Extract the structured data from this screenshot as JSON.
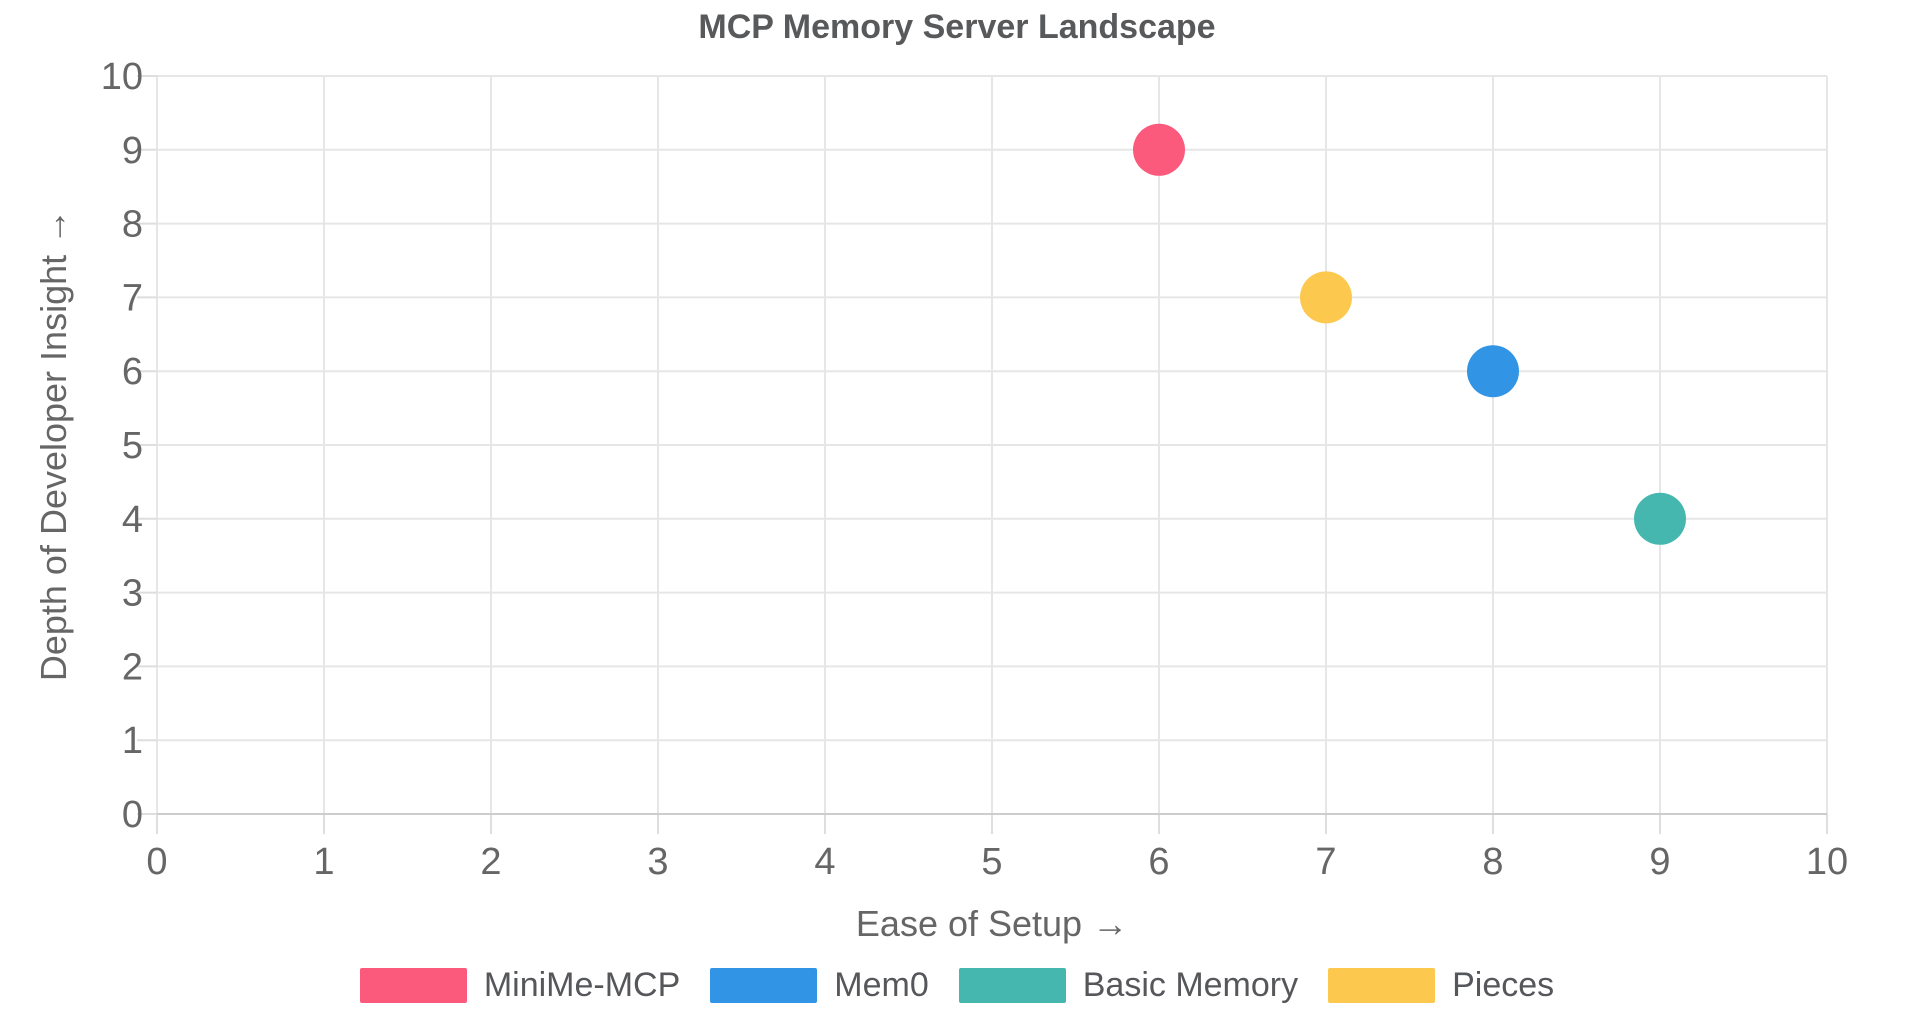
{
  "chart_data": {
    "type": "scatter",
    "title": "MCP Memory Server Landscape",
    "xlabel": "Ease of Setup →",
    "ylabel": "Depth of Developer Insight →",
    "xlim": [
      0,
      10
    ],
    "ylim": [
      0,
      10
    ],
    "x_ticks": [
      0,
      1,
      2,
      3,
      4,
      5,
      6,
      7,
      8,
      9,
      10
    ],
    "y_ticks": [
      0,
      1,
      2,
      3,
      4,
      5,
      6,
      7,
      8,
      9,
      10
    ],
    "grid": true,
    "legend_position": "bottom",
    "series": [
      {
        "name": "MiniMe-MCP",
        "color": "#fb5a7d",
        "points": [
          {
            "x": 6,
            "y": 9,
            "r": 26
          }
        ]
      },
      {
        "name": "Mem0",
        "color": "#3294e4",
        "points": [
          {
            "x": 8,
            "y": 6,
            "r": 26
          }
        ]
      },
      {
        "name": "Basic Memory",
        "color": "#45b7ae",
        "points": [
          {
            "x": 9,
            "y": 4,
            "r": 26
          }
        ]
      },
      {
        "name": "Pieces",
        "color": "#fcc84e",
        "points": [
          {
            "x": 7,
            "y": 7,
            "r": 26
          }
        ]
      }
    ]
  },
  "style": {
    "background": "#ffffff",
    "grid_color": "#e6e6e6",
    "axis_border_color": "#cdcdcd",
    "tick_mark_color": "#dedede",
    "tick_label_color": "#666666",
    "title_color": "#58595b",
    "legend_text_color": "#56575a"
  }
}
